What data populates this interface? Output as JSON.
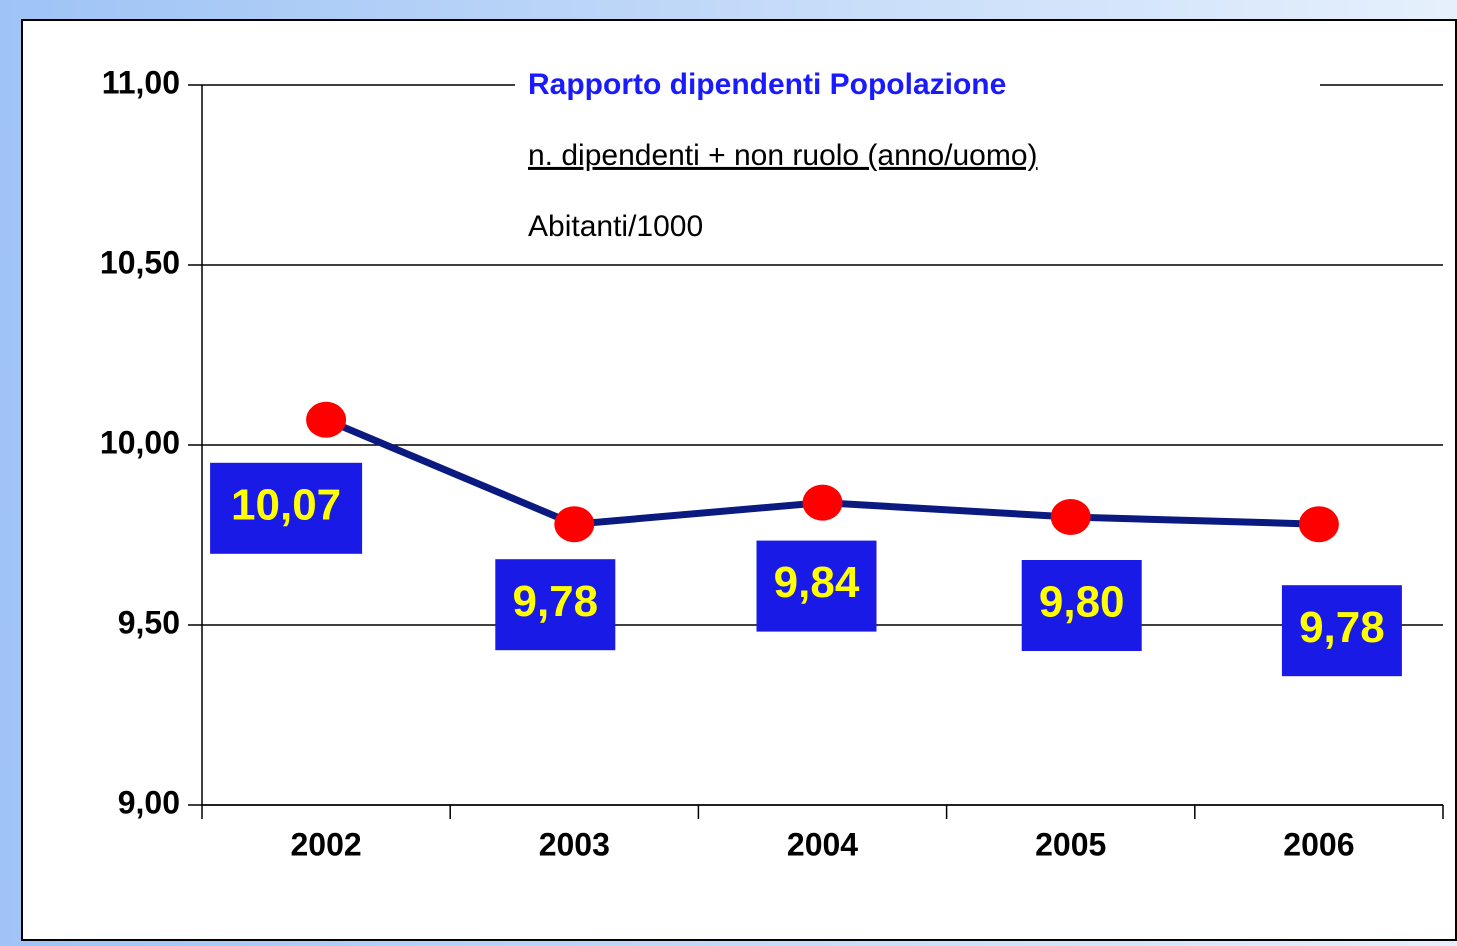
{
  "chart_data": {
    "type": "line",
    "title": "Rapporto dipendenti Popolazione",
    "subtitle": "n. dipendenti + non ruolo (anno/uomo)",
    "annotation": "Abitanti/1000",
    "categories": [
      "2002",
      "2003",
      "2004",
      "2005",
      "2006"
    ],
    "series": [
      {
        "color": "#0a1a80",
        "marker_color": "#ff0000",
        "values": [
          10.07,
          9.78,
          9.84,
          9.8,
          9.78
        ],
        "value_labels": [
          "10,07",
          "9,78",
          "9,84",
          "9,80",
          "9,78"
        ]
      }
    ],
    "ylim": [
      9,
      11
    ],
    "yticks": [
      {
        "value": 9,
        "label": "9,00"
      },
      {
        "value": 9.5,
        "label": "9,50"
      },
      {
        "value": 10,
        "label": "10,00"
      },
      {
        "value": 10.5,
        "label": "10,50"
      },
      {
        "value": 11,
        "label": "11,00"
      }
    ],
    "grid": true
  }
}
